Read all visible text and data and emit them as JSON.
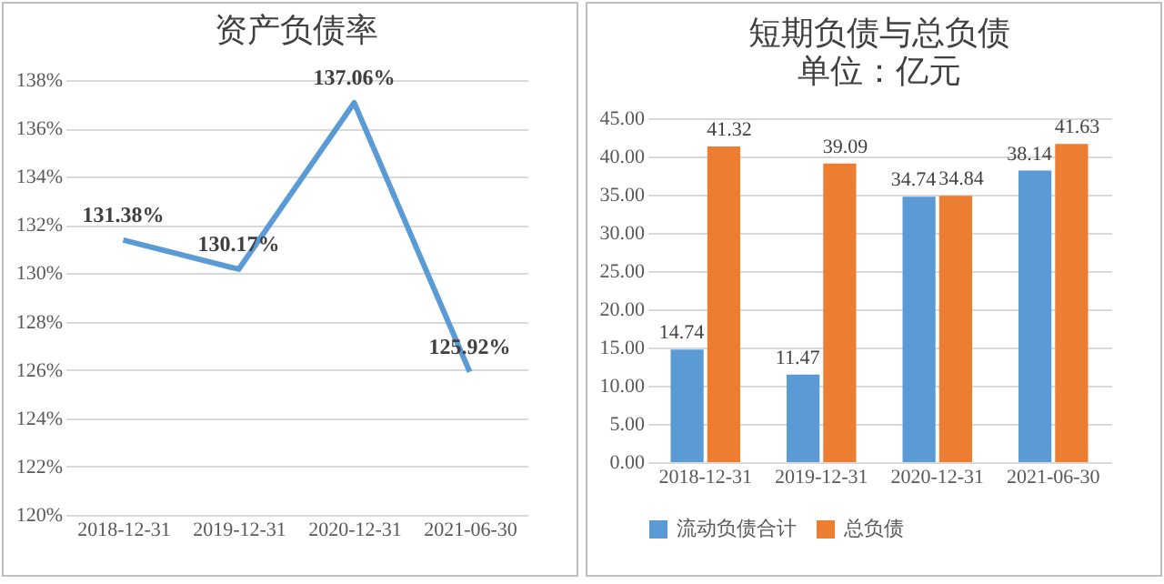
{
  "chart_data": [
    {
      "type": "line",
      "title": "资产负债率",
      "categories": [
        "2018-12-31",
        "2019-12-31",
        "2020-12-31",
        "2021-06-30"
      ],
      "series": [
        {
          "color": "#5b9bd5",
          "values": [
            131.38,
            130.17,
            137.06,
            125.92
          ],
          "value_labels": [
            "131.38%",
            "130.17%",
            "137.06%",
            "125.92%"
          ]
        }
      ],
      "ylim": [
        120,
        138
      ],
      "yticks": [
        {
          "value": 120,
          "label": "120%"
        },
        {
          "value": 122,
          "label": "122%"
        },
        {
          "value": 124,
          "label": "124%"
        },
        {
          "value": 126,
          "label": "126%"
        },
        {
          "value": 128,
          "label": "128%"
        },
        {
          "value": 130,
          "label": "130%"
        },
        {
          "value": 132,
          "label": "132%"
        },
        {
          "value": 134,
          "label": "134%"
        },
        {
          "value": 136,
          "label": "136%"
        },
        {
          "value": 138,
          "label": "138%"
        }
      ],
      "grid": "y",
      "legend": false
    },
    {
      "type": "bar",
      "title": "短期负债与总负债",
      "subtitle": "单位：亿元",
      "categories": [
        "2018-12-31",
        "2019-12-31",
        "2020-12-31",
        "2021-06-30"
      ],
      "series": [
        {
          "name": "流动负债合计",
          "color": "#5b9bd5",
          "values": [
            14.74,
            11.47,
            34.74,
            38.14
          ]
        },
        {
          "name": "总负债",
          "color": "#ed7d31",
          "values": [
            41.32,
            39.09,
            34.84,
            41.63
          ]
        }
      ],
      "ylim": [
        0,
        45
      ],
      "yticks": [
        {
          "value": 0,
          "label": "0.00"
        },
        {
          "value": 5,
          "label": "5.00"
        },
        {
          "value": 10,
          "label": "10.00"
        },
        {
          "value": 15,
          "label": "15.00"
        },
        {
          "value": 20,
          "label": "20.00"
        },
        {
          "value": 25,
          "label": "25.00"
        },
        {
          "value": 30,
          "label": "30.00"
        },
        {
          "value": 35,
          "label": "35.00"
        },
        {
          "value": 40,
          "label": "40.00"
        },
        {
          "value": 45,
          "label": "45.00"
        }
      ],
      "grid": "y",
      "data_labels": true,
      "legend": "bottom"
    }
  ]
}
